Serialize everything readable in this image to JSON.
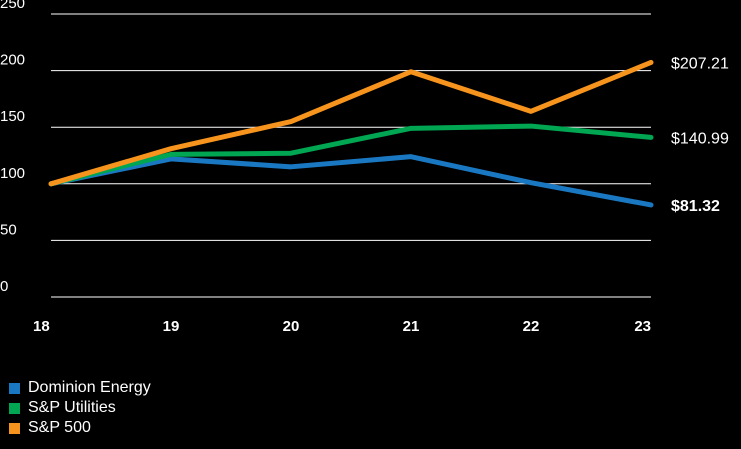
{
  "chart_data": {
    "type": "line",
    "title": "",
    "xlabel": "",
    "ylabel": "",
    "x": [
      "18",
      "19",
      "20",
      "21",
      "22",
      "23"
    ],
    "ylim": [
      0,
      250
    ],
    "yticks": [
      "0",
      "50",
      "100",
      "150",
      "200",
      "250"
    ],
    "grid": "horizontal",
    "legend_position": "bottom-left",
    "series": [
      {
        "name": "Dominion Energy",
        "color": "#1a78c2",
        "values": [
          100,
          122,
          115,
          124,
          101,
          81.32
        ],
        "end_label": "$81.32",
        "end_label_bold": true
      },
      {
        "name": "S&P Utilities",
        "color": "#00a651",
        "values": [
          100,
          126,
          127,
          149,
          151,
          140.99
        ],
        "end_label": "$140.99",
        "end_label_bold": false
      },
      {
        "name": "S&P 500",
        "color": "#f7941d",
        "values": [
          100,
          131,
          155,
          199,
          164,
          207.21
        ],
        "end_label": "$207.21",
        "end_label_bold": false
      }
    ]
  }
}
